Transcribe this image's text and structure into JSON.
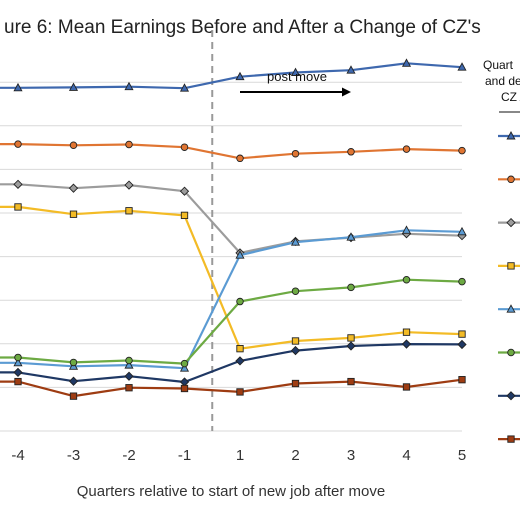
{
  "chart_data": {
    "type": "line",
    "title": "ure 6: Mean Earnings Before and After a Change of CZ's",
    "xlabel": "Quarters relative to start of new job after move",
    "x": [
      "-4",
      "-3",
      "-2",
      "-1",
      "1",
      "2",
      "3",
      "4",
      "5"
    ],
    "xlim": [
      -4.3,
      5
    ],
    "ylim": [
      0,
      100
    ],
    "grid": true,
    "divider_at": -0.5,
    "annotation": {
      "text": "post move",
      "arrow_from": 1,
      "arrow_to": 3
    },
    "legend": {
      "position": "right",
      "title_lines": [
        "Quart",
        "and de",
        "CZ A"
      ]
    },
    "series": [
      {
        "color": "#3E68AE",
        "marker": "triangle",
        "values": [
          89.6,
          89.7,
          89.9,
          89.5,
          92.5,
          93.6,
          94.2,
          96.0,
          95.0
        ]
      },
      {
        "color": "#E07532",
        "marker": "circle",
        "values": [
          74.9,
          74.6,
          74.8,
          74.1,
          71.2,
          72.4,
          72.9,
          73.6,
          73.2
        ]
      },
      {
        "color": "#9C9C9C",
        "marker": "diamond",
        "values": [
          64.4,
          63.4,
          64.2,
          62.6,
          46.5,
          49.5,
          50.5,
          51.5,
          51.0
        ]
      },
      {
        "color": "#F3BB26",
        "marker": "square",
        "values": [
          58.5,
          56.6,
          57.5,
          56.3,
          21.5,
          23.5,
          24.3,
          25.8,
          25.3
        ]
      },
      {
        "color": "#5B9BD3",
        "marker": "triangle",
        "values": [
          17.8,
          16.9,
          17.2,
          16.4,
          45.9,
          49.3,
          50.6,
          52.4,
          52.0
        ]
      },
      {
        "color": "#6DAA43",
        "marker": "circle",
        "values": [
          19.2,
          17.9,
          18.4,
          17.6,
          33.8,
          36.5,
          37.5,
          39.5,
          39.0
        ]
      },
      {
        "color": "#1F3864",
        "marker": "diamond",
        "values": [
          15.3,
          13.0,
          14.3,
          12.8,
          18.3,
          21.0,
          22.2,
          22.7,
          22.6
        ]
      },
      {
        "color": "#9E3C12",
        "marker": "square",
        "values": [
          12.9,
          9.1,
          11.3,
          11.1,
          10.2,
          12.4,
          12.9,
          11.5,
          13.4
        ]
      }
    ]
  }
}
